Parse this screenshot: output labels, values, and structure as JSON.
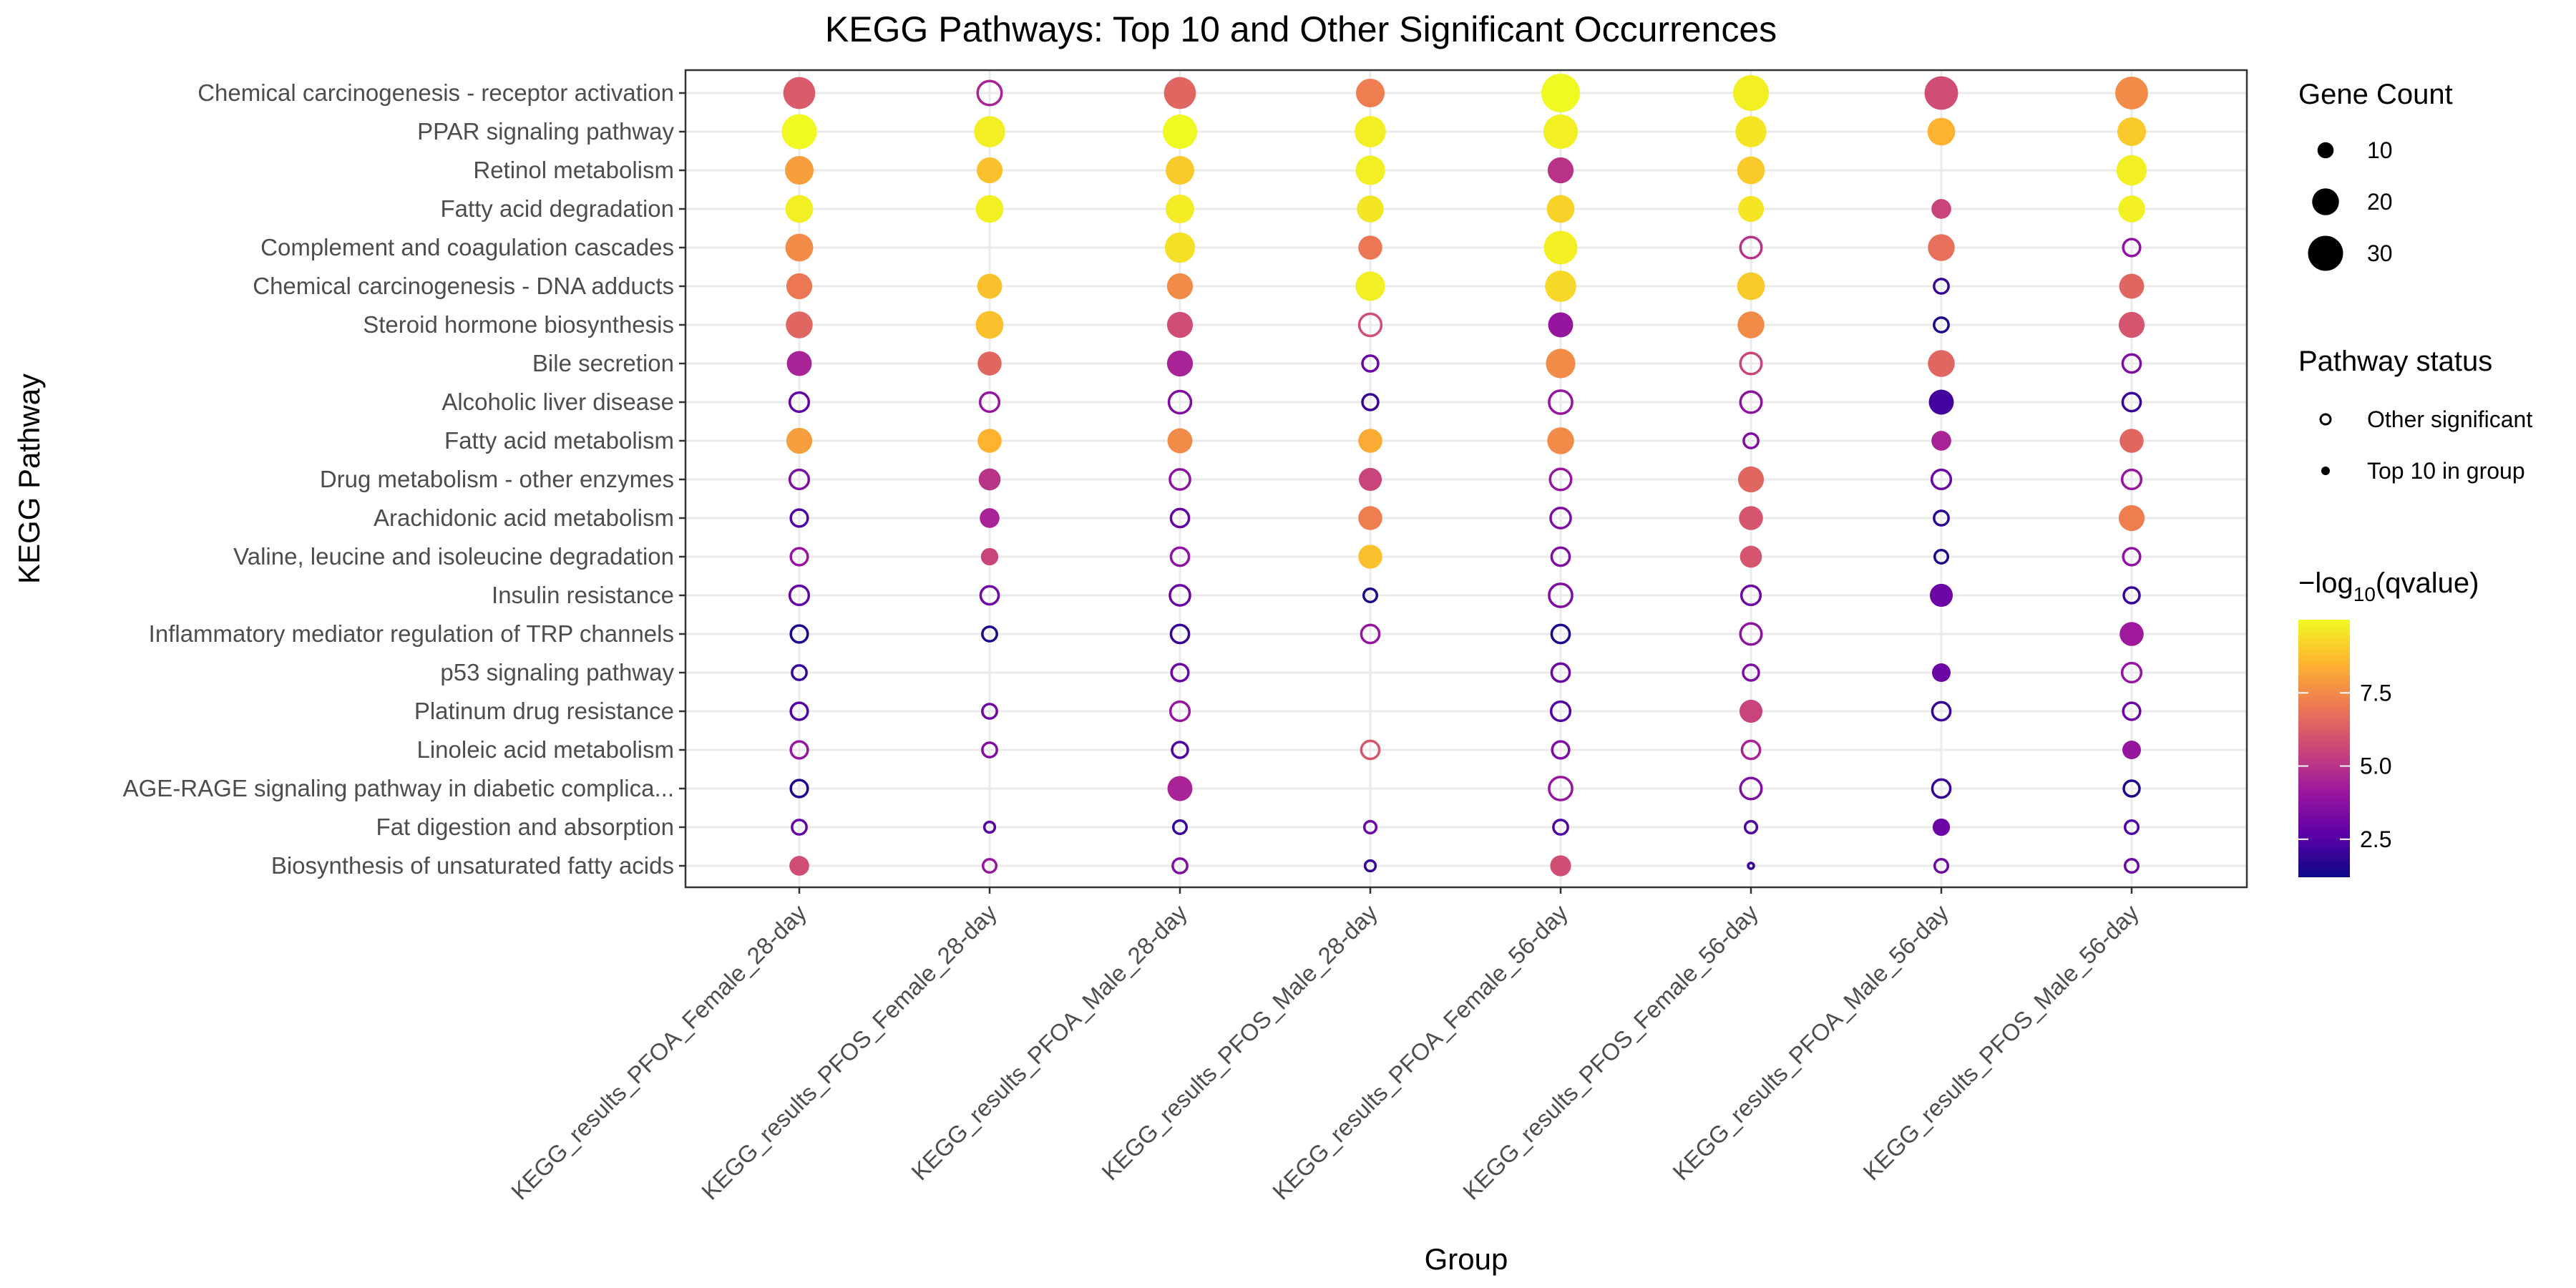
{
  "chart_data": {
    "type": "scatter",
    "title": "KEGG Pathways: Top 10 and Other Significant Occurrences",
    "xlabel": "Group",
    "ylabel": "KEGG Pathway",
    "grid": true,
    "groups": [
      "KEGG_results_PFOA_Female_28-day",
      "KEGG_results_PFOS_Female_28-day",
      "KEGG_results_PFOA_Male_28-day",
      "KEGG_results_PFOS_Male_28-day",
      "KEGG_results_PFOA_Female_56-day",
      "KEGG_results_PFOS_Female_56-day",
      "KEGG_results_PFOA_Male_56-day",
      "KEGG_results_PFOS_Male_56-day"
    ],
    "pathways": [
      "Chemical carcinogenesis - receptor activation",
      "PPAR signaling pathway",
      "Retinol metabolism",
      "Fatty acid degradation",
      "Complement and coagulation cascades",
      "Chemical carcinogenesis - DNA adducts",
      "Steroid hormone biosynthesis",
      "Bile secretion",
      "Alcoholic liver disease",
      "Fatty acid metabolism",
      "Drug metabolism - other enzymes",
      "Arachidonic acid metabolism",
      "Valine, leucine and isoleucine degradation",
      "Insulin resistance",
      "Inflammatory mediator regulation of TRP channels",
      "p53 signaling pathway",
      "Platinum drug resistance",
      "Linoleic acid metabolism",
      "AGE-RAGE signaling pathway in diabetic complica...",
      "Fat digestion and absorption",
      "Biosynthesis of unsaturated fatty acids"
    ],
    "points_format": [
      "pathway_index",
      "group_index",
      "gene_count",
      "neg_log10_qvalue",
      "top10"
    ],
    "points": [
      [
        0,
        0,
        26,
        6.2,
        1
      ],
      [
        0,
        1,
        20,
        4.5,
        0
      ],
      [
        0,
        2,
        26,
        6.5,
        1
      ],
      [
        0,
        3,
        22,
        7.2,
        1
      ],
      [
        0,
        4,
        35,
        10.0,
        1
      ],
      [
        0,
        5,
        31,
        9.8,
        1
      ],
      [
        0,
        6,
        28,
        5.8,
        1
      ],
      [
        0,
        7,
        27,
        7.5,
        1
      ],
      [
        1,
        0,
        30,
        10.0,
        1
      ],
      [
        1,
        1,
        25,
        9.8,
        1
      ],
      [
        1,
        2,
        29,
        10.0,
        1
      ],
      [
        1,
        3,
        25,
        9.8,
        1
      ],
      [
        1,
        4,
        29,
        9.8,
        1
      ],
      [
        1,
        5,
        25,
        9.6,
        1
      ],
      [
        1,
        6,
        21,
        8.5,
        1
      ],
      [
        1,
        7,
        22,
        9.0,
        1
      ],
      [
        2,
        0,
        22,
        8.0,
        1
      ],
      [
        2,
        1,
        19,
        8.8,
        1
      ],
      [
        2,
        2,
        22,
        9.0,
        1
      ],
      [
        2,
        3,
        23,
        9.8,
        1
      ],
      [
        2,
        4,
        19,
        5.0,
        1
      ],
      [
        2,
        5,
        21,
        9.0,
        1
      ],
      [
        2,
        6,
        null,
        null,
        0
      ],
      [
        2,
        7,
        24,
        9.8,
        1
      ],
      [
        3,
        0,
        21,
        9.8,
        1
      ],
      [
        3,
        1,
        21,
        9.8,
        1
      ],
      [
        3,
        2,
        22,
        9.7,
        1
      ],
      [
        3,
        3,
        20,
        9.6,
        1
      ],
      [
        3,
        4,
        21,
        9.2,
        1
      ],
      [
        3,
        5,
        19,
        9.6,
        1
      ],
      [
        3,
        6,
        13,
        5.5,
        1
      ],
      [
        3,
        7,
        20,
        9.8,
        1
      ],
      [
        4,
        0,
        21,
        7.5,
        1
      ],
      [
        4,
        1,
        null,
        null,
        0
      ],
      [
        4,
        2,
        24,
        9.5,
        1
      ],
      [
        4,
        3,
        17,
        7.0,
        1
      ],
      [
        4,
        4,
        28,
        9.8,
        1
      ],
      [
        4,
        5,
        17,
        5.0,
        0
      ],
      [
        4,
        6,
        20,
        6.8,
        1
      ],
      [
        4,
        7,
        13,
        3.8,
        0
      ],
      [
        5,
        0,
        19,
        7.0,
        1
      ],
      [
        5,
        1,
        18,
        8.8,
        1
      ],
      [
        5,
        2,
        19,
        7.5,
        1
      ],
      [
        5,
        3,
        23,
        9.8,
        1
      ],
      [
        5,
        4,
        25,
        9.3,
        1
      ],
      [
        5,
        5,
        21,
        9.0,
        1
      ],
      [
        5,
        6,
        11,
        2.0,
        0
      ],
      [
        5,
        7,
        18,
        6.5,
        1
      ],
      [
        6,
        0,
        20,
        6.5,
        1
      ],
      [
        6,
        1,
        21,
        8.8,
        1
      ],
      [
        6,
        2,
        19,
        5.8,
        1
      ],
      [
        6,
        3,
        18,
        5.8,
        0
      ],
      [
        6,
        4,
        18,
        4.0,
        1
      ],
      [
        6,
        5,
        20,
        7.5,
        1
      ],
      [
        6,
        6,
        11,
        1.5,
        0
      ],
      [
        6,
        7,
        19,
        6.0,
        1
      ],
      [
        7,
        0,
        18,
        4.5,
        1
      ],
      [
        7,
        1,
        17,
        6.5,
        1
      ],
      [
        7,
        2,
        19,
        4.5,
        1
      ],
      [
        7,
        3,
        12,
        3.0,
        0
      ],
      [
        7,
        4,
        23,
        7.5,
        1
      ],
      [
        7,
        5,
        17,
        5.5,
        0
      ],
      [
        7,
        6,
        20,
        6.5,
        1
      ],
      [
        7,
        7,
        14,
        3.5,
        0
      ],
      [
        8,
        0,
        15,
        2.8,
        0
      ],
      [
        8,
        1,
        15,
        4.0,
        0
      ],
      [
        8,
        2,
        18,
        3.5,
        0
      ],
      [
        8,
        3,
        12,
        2.0,
        0
      ],
      [
        8,
        4,
        19,
        4.0,
        0
      ],
      [
        8,
        5,
        17,
        3.8,
        0
      ],
      [
        8,
        6,
        18,
        2.2,
        1
      ],
      [
        8,
        7,
        14,
        2.0,
        0
      ],
      [
        9,
        0,
        19,
        8.0,
        1
      ],
      [
        9,
        1,
        17,
        8.5,
        1
      ],
      [
        9,
        2,
        18,
        7.5,
        1
      ],
      [
        9,
        3,
        17,
        8.3,
        1
      ],
      [
        9,
        4,
        20,
        7.5,
        1
      ],
      [
        9,
        5,
        11,
        3.5,
        0
      ],
      [
        9,
        6,
        13,
        4.5,
        1
      ],
      [
        9,
        7,
        17,
        6.5,
        1
      ],
      [
        10,
        0,
        15,
        3.5,
        0
      ],
      [
        10,
        1,
        15,
        5.0,
        1
      ],
      [
        10,
        2,
        16,
        3.8,
        0
      ],
      [
        10,
        3,
        16,
        5.5,
        1
      ],
      [
        10,
        4,
        17,
        4.0,
        0
      ],
      [
        10,
        5,
        19,
        6.5,
        1
      ],
      [
        10,
        6,
        15,
        3.0,
        0
      ],
      [
        10,
        7,
        15,
        4.0,
        0
      ],
      [
        11,
        0,
        13,
        2.5,
        0
      ],
      [
        11,
        1,
        13,
        4.5,
        1
      ],
      [
        11,
        2,
        14,
        2.8,
        0
      ],
      [
        11,
        3,
        17,
        7.2,
        1
      ],
      [
        11,
        4,
        16,
        3.5,
        0
      ],
      [
        11,
        5,
        17,
        6.0,
        1
      ],
      [
        11,
        6,
        11,
        1.8,
        0
      ],
      [
        11,
        7,
        19,
        7.2,
        1
      ],
      [
        12,
        0,
        13,
        4.0,
        0
      ],
      [
        12,
        1,
        11,
        5.5,
        1
      ],
      [
        12,
        2,
        14,
        3.8,
        0
      ],
      [
        12,
        3,
        17,
        8.8,
        1
      ],
      [
        12,
        4,
        14,
        3.5,
        0
      ],
      [
        12,
        5,
        15,
        6.0,
        1
      ],
      [
        12,
        6,
        10,
        1.5,
        0
      ],
      [
        12,
        7,
        13,
        3.8,
        0
      ],
      [
        13,
        0,
        15,
        2.8,
        0
      ],
      [
        13,
        1,
        14,
        3.2,
        0
      ],
      [
        13,
        2,
        16,
        3.0,
        0
      ],
      [
        13,
        3,
        10,
        1.5,
        0
      ],
      [
        13,
        4,
        19,
        3.5,
        0
      ],
      [
        13,
        5,
        15,
        3.0,
        0
      ],
      [
        13,
        6,
        16,
        3.0,
        1
      ],
      [
        13,
        7,
        12,
        2.0,
        0
      ],
      [
        14,
        0,
        13,
        1.5,
        0
      ],
      [
        14,
        1,
        11,
        1.5,
        0
      ],
      [
        14,
        2,
        14,
        2.0,
        0
      ],
      [
        14,
        3,
        14,
        4.0,
        0
      ],
      [
        14,
        4,
        14,
        1.5,
        0
      ],
      [
        14,
        5,
        17,
        3.8,
        0
      ],
      [
        14,
        6,
        null,
        null,
        0
      ],
      [
        14,
        7,
        17,
        4.2,
        1
      ],
      [
        15,
        0,
        11,
        2.0,
        0
      ],
      [
        15,
        1,
        null,
        null,
        0
      ],
      [
        15,
        2,
        13,
        3.0,
        0
      ],
      [
        15,
        3,
        null,
        null,
        0
      ],
      [
        15,
        4,
        14,
        3.0,
        0
      ],
      [
        15,
        5,
        12,
        3.5,
        0
      ],
      [
        15,
        6,
        12,
        3.0,
        1
      ],
      [
        15,
        7,
        15,
        4.0,
        0
      ],
      [
        16,
        0,
        13,
        2.5,
        0
      ],
      [
        16,
        1,
        11,
        3.0,
        0
      ],
      [
        16,
        2,
        15,
        4.0,
        0
      ],
      [
        16,
        3,
        null,
        null,
        0
      ],
      [
        16,
        4,
        15,
        2.5,
        0
      ],
      [
        16,
        5,
        16,
        5.5,
        1
      ],
      [
        16,
        6,
        14,
        2.0,
        0
      ],
      [
        16,
        7,
        13,
        3.0,
        0
      ],
      [
        17,
        0,
        13,
        4.0,
        0
      ],
      [
        17,
        1,
        11,
        3.5,
        0
      ],
      [
        17,
        2,
        12,
        2.5,
        0
      ],
      [
        17,
        3,
        14,
        6.0,
        0
      ],
      [
        17,
        4,
        13,
        3.5,
        0
      ],
      [
        17,
        5,
        14,
        4.5,
        0
      ],
      [
        17,
        6,
        null,
        null,
        0
      ],
      [
        17,
        7,
        12,
        4.0,
        1
      ],
      [
        18,
        0,
        13,
        1.5,
        0
      ],
      [
        18,
        1,
        null,
        null,
        0
      ],
      [
        18,
        2,
        18,
        4.5,
        1
      ],
      [
        18,
        3,
        null,
        null,
        0
      ],
      [
        18,
        4,
        19,
        4.0,
        0
      ],
      [
        18,
        5,
        17,
        3.5,
        0
      ],
      [
        18,
        6,
        14,
        2.0,
        0
      ],
      [
        18,
        7,
        12,
        1.5,
        0
      ],
      [
        19,
        0,
        11,
        2.8,
        0
      ],
      [
        19,
        1,
        8,
        2.5,
        0
      ],
      [
        19,
        2,
        10,
        2.0,
        0
      ],
      [
        19,
        3,
        9,
        3.0,
        0
      ],
      [
        19,
        4,
        11,
        2.5,
        0
      ],
      [
        19,
        5,
        9,
        2.5,
        0
      ],
      [
        19,
        6,
        11,
        3.0,
        1
      ],
      [
        19,
        7,
        10,
        2.5,
        0
      ],
      [
        20,
        0,
        13,
        5.8,
        1
      ],
      [
        20,
        1,
        10,
        4.0,
        0
      ],
      [
        20,
        2,
        11,
        3.5,
        0
      ],
      [
        20,
        3,
        8,
        2.0,
        0
      ],
      [
        20,
        4,
        14,
        5.8,
        1
      ],
      [
        20,
        5,
        5,
        2.0,
        0
      ],
      [
        20,
        6,
        10,
        3.0,
        0
      ],
      [
        20,
        7,
        10,
        3.0,
        0
      ]
    ],
    "color_scale": {
      "palette": "plasma",
      "stops": [
        "#0d0887",
        "#5c01a6",
        "#9c179e",
        "#cc4778",
        "#ed7953",
        "#fdb42f",
        "#f0f921"
      ],
      "min": 1.2,
      "max": 10.0,
      "ticks": [
        2.5,
        5.0,
        7.5
      ]
    },
    "size_scale": {
      "min_count": 5,
      "max_count": 35,
      "ticks": [
        10,
        20,
        30
      ]
    },
    "legend_placement": "right",
    "legends": {
      "size_title": "Gene Count",
      "size_labels": [
        "10",
        "20",
        "30"
      ],
      "status_title": "Pathway status",
      "status_labels": [
        "Other significant",
        "Top 10 in group"
      ],
      "color_title_prefix": "−log",
      "color_title_sub": "10",
      "color_title_suffix": "(qvalue)",
      "color_labels": [
        "2.5",
        "5.0",
        "7.5"
      ]
    }
  }
}
